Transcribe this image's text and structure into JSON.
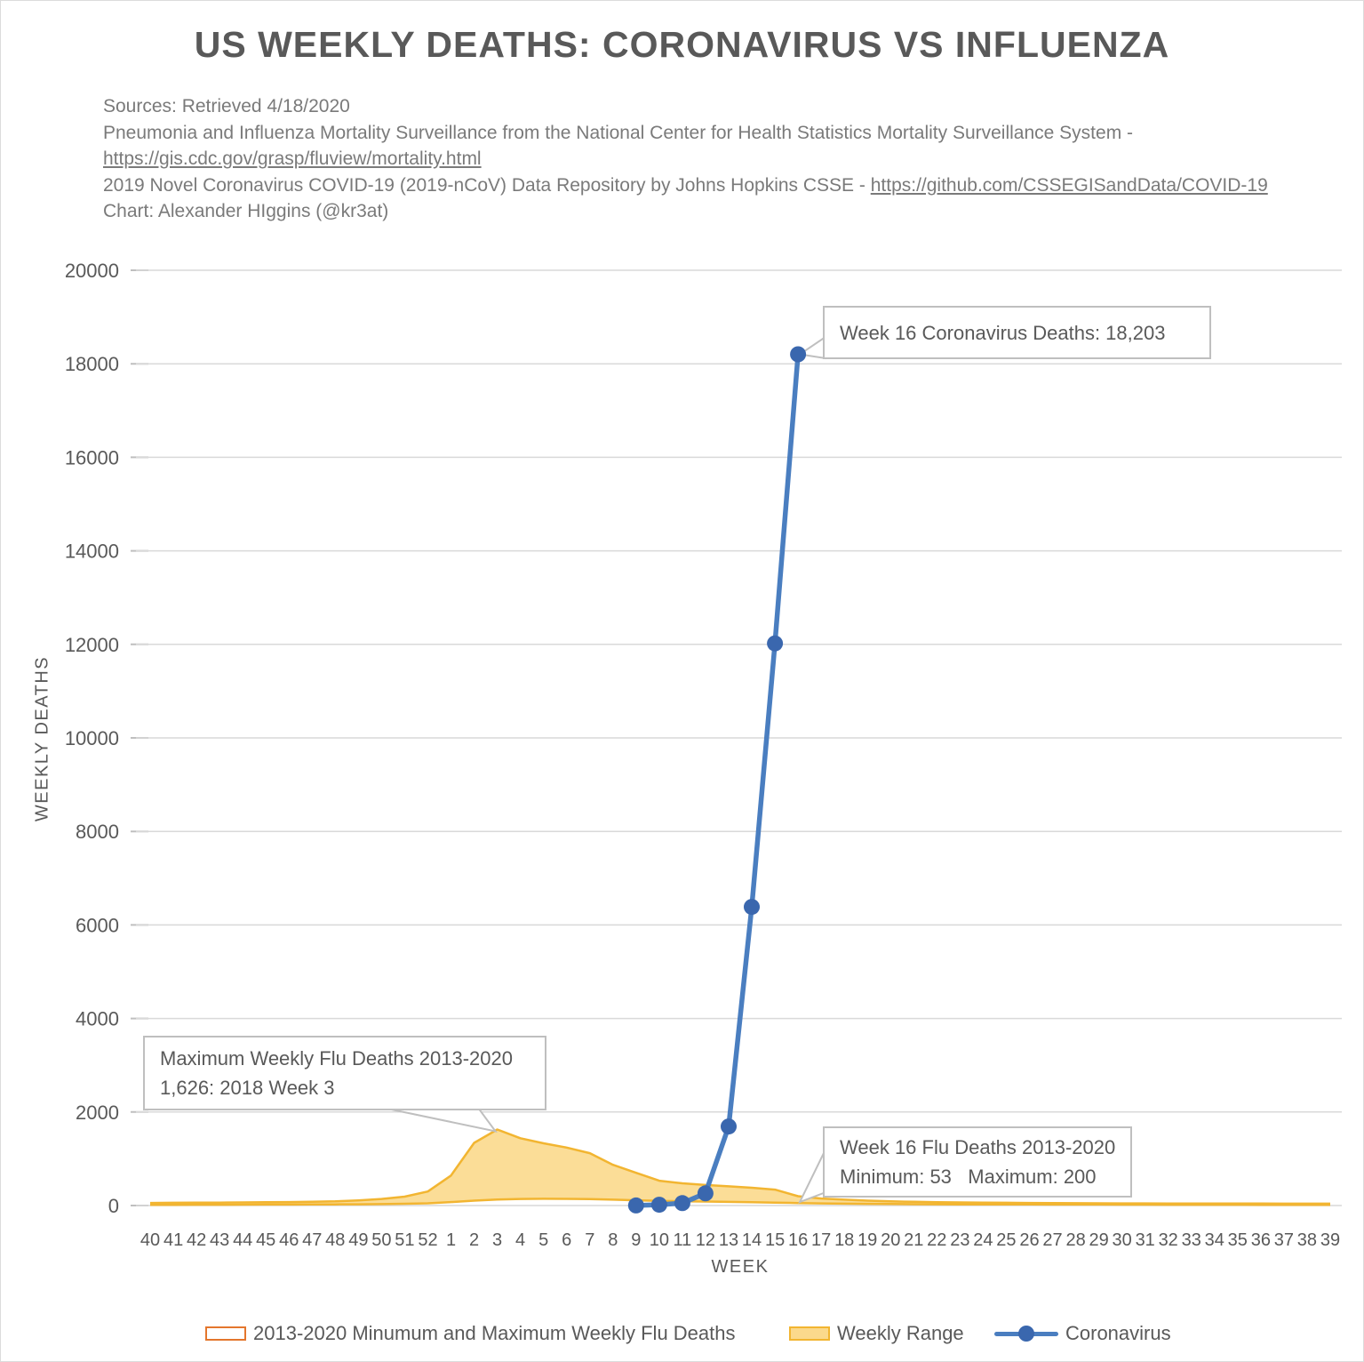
{
  "header": {
    "title": "US WEEKLY DEATHS: CORONAVIRUS VS INFLUENZA"
  },
  "sources": {
    "line1": "Sources: Retrieved 4/18/2020",
    "line2": "Pneumonia and Influenza Mortality Surveillance from the National Center for Health Statistics Mortality Surveillance System -",
    "line3_link": "https://gis.cdc.gov/grasp/fluview/mortality.html",
    "line4_text": "2019 Novel Coronavirus COVID-19 (2019-nCoV) Data Repository by Johns Hopkins CSSE - ",
    "line4_link": "https://github.com/CSSEGISandData/COVID-19",
    "line5": "Chart: Alexander HIggins (@kr3at)"
  },
  "annotations": {
    "corona_week16": "Week 16 Coronavirus Deaths: 18,203",
    "flu_max_line1": "Maximum Weekly Flu Deaths 2013-2020",
    "flu_max_line2": "1,626: 2018 Week 3",
    "flu_week16_line1": "Week 16 Flu Deaths 2013-2020",
    "flu_week16_line2": "Minimum: 53   Maximum: 200"
  },
  "legend": {
    "items": [
      {
        "label": "2013-2020 Minumum and Maximum Weekly Flu Deaths",
        "type": "outline-box"
      },
      {
        "label": "Weekly Range",
        "type": "filled-box"
      },
      {
        "label": "Coronavirus",
        "type": "line-marker"
      }
    ]
  },
  "colors": {
    "text": "#595959",
    "grid": "#d9d9d9",
    "tick": "#bfbfbf",
    "callout_border": "#bfbfbf",
    "corona_line": "#4a7ec0",
    "corona_marker": "#3a67ae",
    "band_fill": "#fbd98c",
    "band_stroke": "#f2b531",
    "flu_outline_legend": "#e4762d"
  },
  "chart_data": {
    "type": "area",
    "title": "US WEEKLY DEATHS: CORONAVIRUS VS INFLUENZA",
    "xlabel": "WEEK",
    "ylabel": "WEEKLY DEATHS",
    "ylim": [
      0,
      20000
    ],
    "ytick_step": 2000,
    "grid": true,
    "legend_position": "bottom",
    "categories": [
      "40",
      "41",
      "42",
      "43",
      "44",
      "45",
      "46",
      "47",
      "48",
      "49",
      "50",
      "51",
      "52",
      "1",
      "2",
      "3",
      "4",
      "5",
      "6",
      "7",
      "8",
      "9",
      "10",
      "11",
      "12",
      "13",
      "14",
      "15",
      "16",
      "17",
      "18",
      "19",
      "20",
      "21",
      "22",
      "23",
      "24",
      "25",
      "26",
      "27",
      "28",
      "29",
      "30",
      "31",
      "32",
      "33",
      "34",
      "35",
      "36",
      "37",
      "38",
      "39"
    ],
    "series": [
      {
        "name": "Weekly Range (flu max, 2013-2020)",
        "values": [
          55,
          58,
          60,
          63,
          66,
          70,
          74,
          80,
          90,
          110,
          140,
          190,
          300,
          640,
          1340,
          1626,
          1440,
          1330,
          1240,
          1120,
          870,
          700,
          530,
          475,
          440,
          410,
          380,
          340,
          200,
          150,
          125,
          105,
          90,
          80,
          72,
          66,
          62,
          58,
          55,
          52,
          50,
          48,
          46,
          45,
          44,
          43,
          42,
          42,
          41,
          40,
          40,
          40
        ]
      },
      {
        "name": "Weekly Range (flu min, 2013-2020)",
        "values": [
          15,
          16,
          17,
          18,
          19,
          20,
          21,
          22,
          24,
          26,
          30,
          38,
          48,
          75,
          105,
          130,
          140,
          145,
          142,
          138,
          125,
          112,
          100,
          92,
          85,
          78,
          70,
          62,
          53,
          46,
          40,
          36,
          32,
          29,
          27,
          25,
          24,
          23,
          22,
          21,
          20,
          20,
          19,
          19,
          18,
          18,
          17,
          17,
          16,
          16,
          15,
          15
        ]
      },
      {
        "name": "Coronavirus",
        "values": [
          null,
          null,
          null,
          null,
          null,
          null,
          null,
          null,
          null,
          null,
          null,
          null,
          null,
          null,
          null,
          null,
          null,
          null,
          null,
          null,
          null,
          2,
          17,
          52,
          260,
          1690,
          6385,
          12020,
          18203,
          null,
          null,
          null,
          null,
          null,
          null,
          null,
          null,
          null,
          null,
          null,
          null,
          null,
          null,
          null,
          null,
          null,
          null,
          null,
          null,
          null,
          null,
          null
        ]
      }
    ],
    "annotated_points": {
      "coronavirus_week16": 18203,
      "flu_max_peak": {
        "value": 1626,
        "label": "2018 Week 3"
      },
      "flu_week16_min": 53,
      "flu_week16_max": 200
    }
  }
}
